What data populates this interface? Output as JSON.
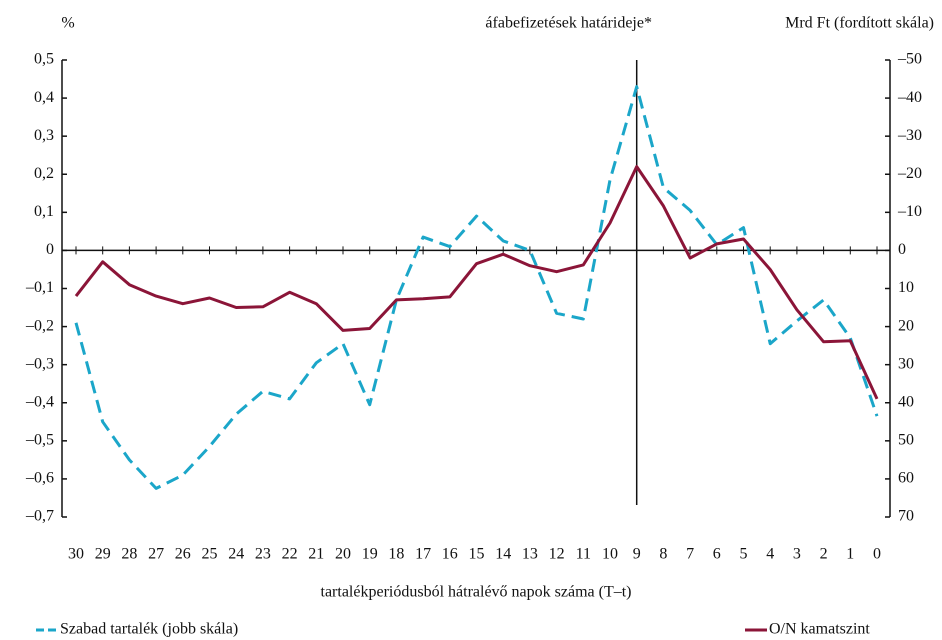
{
  "chart_data": {
    "type": "line",
    "y_axis_label": "%",
    "y2_axis_label": "Mrd Ft (fordított skála)",
    "x_axis_label": "tartalékperiódusból hátralévő napok száma (T–t)",
    "annotation": {
      "text": "áfabefizetések határideje*",
      "x": "9"
    },
    "categories": [
      "30",
      "29",
      "28",
      "27",
      "26",
      "25",
      "24",
      "23",
      "22",
      "21",
      "20",
      "19",
      "18",
      "17",
      "16",
      "15",
      "14",
      "13",
      "12",
      "11",
      "10",
      "9",
      "8",
      "7",
      "6",
      "5",
      "4",
      "3",
      "2",
      "1",
      "0"
    ],
    "series": [
      {
        "name": "Szabad tartalék (jobb skála)",
        "color": "#1ba6c9",
        "dashed": true,
        "axis": "y2",
        "values": [
          19,
          45,
          55,
          62.5,
          59,
          51.5,
          43,
          37,
          39,
          29.5,
          24.5,
          40.5,
          13,
          -3.5,
          -1,
          -9,
          -2.5,
          0,
          16.5,
          18,
          -18.5,
          -43,
          -16.5,
          -10.5,
          -1.5,
          -6,
          24.5,
          18.5,
          13,
          23,
          43.5
        ]
      },
      {
        "name": "O/N kamatszint",
        "color": "#8b1538",
        "dashed": false,
        "axis": "y",
        "values": [
          -0.12,
          -0.03,
          -0.09,
          -0.12,
          -0.14,
          -0.125,
          -0.15,
          -0.148,
          -0.11,
          -0.14,
          -0.21,
          -0.205,
          -0.13,
          -0.127,
          -0.122,
          -0.035,
          -0.01,
          -0.04,
          -0.056,
          -0.038,
          0.072,
          0.22,
          0.117,
          -0.02,
          0.017,
          0.03,
          -0.05,
          -0.156,
          -0.24,
          -0.237,
          -0.39
        ]
      }
    ],
    "ylim": [
      -0.7,
      0.5
    ],
    "yticks": [
      {
        "value": 0.5,
        "label": "0,5"
      },
      {
        "value": 0.4,
        "label": "0,4"
      },
      {
        "value": 0.3,
        "label": "0,3"
      },
      {
        "value": 0.2,
        "label": "0,2"
      },
      {
        "value": 0.1,
        "label": "0,1"
      },
      0,
      {
        "value": -0.1,
        "label": "–0,1"
      },
      {
        "value": -0.2,
        "label": "–0,2"
      },
      {
        "value": -0.3,
        "label": "–0,3"
      },
      {
        "value": -0.4,
        "label": "–0,4"
      },
      {
        "value": -0.5,
        "label": "–0,5"
      },
      {
        "value": -0.6,
        "label": "–0,6"
      },
      {
        "value": -0.7,
        "label": "–0,7"
      }
    ],
    "y2lim": [
      -50,
      70
    ],
    "y2_inverted": true,
    "y2ticks": [
      {
        "value": -50,
        "label": "–50"
      },
      {
        "value": -40,
        "label": "–40"
      },
      {
        "value": -30,
        "label": "–30"
      },
      {
        "value": -20,
        "label": "–20"
      },
      {
        "value": -10,
        "label": "–10"
      },
      0,
      10,
      20,
      30,
      40,
      50,
      60,
      70
    ]
  }
}
